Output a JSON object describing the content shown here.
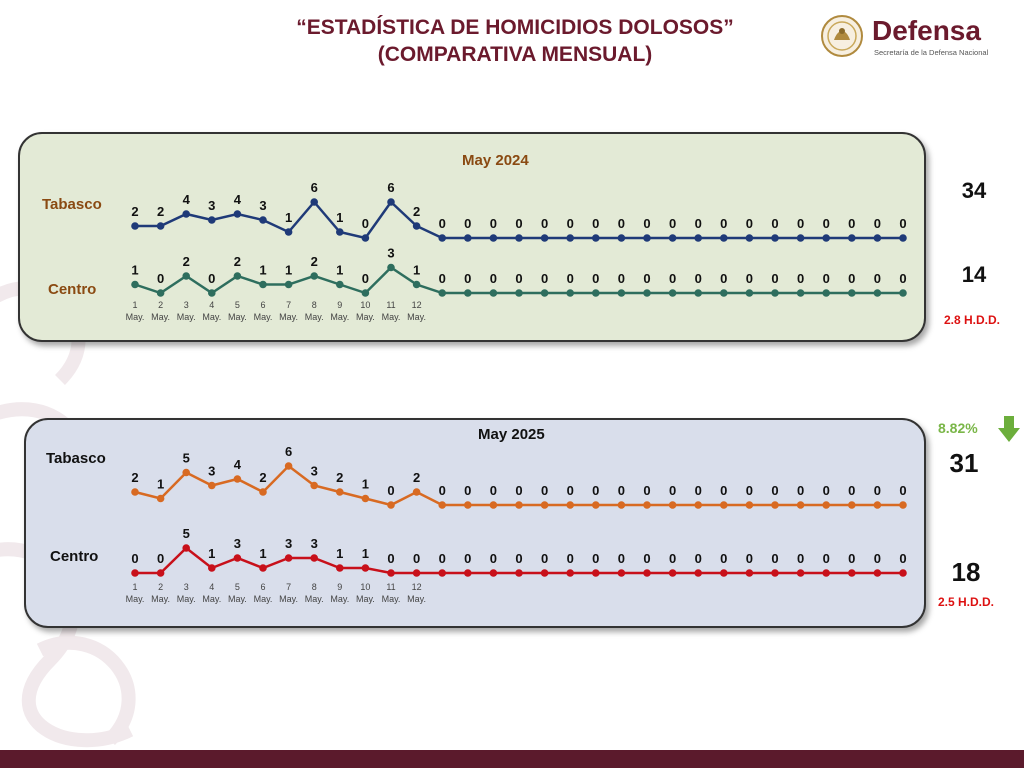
{
  "header": {
    "title_line1": "“ESTADÍSTICA DE HOMICIDIOS DOLOSOS”",
    "title_line2": "(COMPARATIVA MENSUAL)"
  },
  "brand": {
    "name": "Defensa",
    "subtitle": "Secretaría de la Defensa Nacional",
    "color": "#6b1a2d"
  },
  "colors": {
    "tabasco_2024": "#1f3a78",
    "centro_2024": "#2e6e5e",
    "tabasco_2025": "#d86a22",
    "centro_2025": "#c8101a",
    "label_2024": "#8a4a12",
    "label_2025": "#111111",
    "hdd": "#dd1111",
    "pct": "#7ab648"
  },
  "chart_data": [
    {
      "type": "line",
      "title": "May 2024",
      "x": [
        "1",
        "2",
        "3",
        "4",
        "5",
        "6",
        "7",
        "8",
        "9",
        "10",
        "11",
        "12",
        "",
        "",
        "",
        "",
        "",
        "",
        "",
        "",
        "",
        "",
        "",
        "",
        "",
        "",
        "",
        "",
        "",
        "",
        ""
      ],
      "x_sub": "May.",
      "series": [
        {
          "name": "Tabasco",
          "values": [
            2,
            2,
            4,
            3,
            4,
            3,
            1,
            6,
            1,
            0,
            6,
            2,
            0,
            0,
            0,
            0,
            0,
            0,
            0,
            0,
            0,
            0,
            0,
            0,
            0,
            0,
            0,
            0,
            0,
            0,
            0
          ],
          "total": "34"
        },
        {
          "name": "Centro",
          "values": [
            1,
            0,
            2,
            0,
            2,
            1,
            1,
            2,
            1,
            0,
            3,
            1,
            0,
            0,
            0,
            0,
            0,
            0,
            0,
            0,
            0,
            0,
            0,
            0,
            0,
            0,
            0,
            0,
            0,
            0,
            0
          ],
          "total": "14",
          "rate": "2.8 H.D.D."
        }
      ]
    },
    {
      "type": "line",
      "title": "May 2025",
      "x": [
        "1",
        "2",
        "3",
        "4",
        "5",
        "6",
        "7",
        "8",
        "9",
        "10",
        "11",
        "12",
        "",
        "",
        "",
        "",
        "",
        "",
        "",
        "",
        "",
        "",
        "",
        "",
        "",
        "",
        "",
        "",
        "",
        "",
        ""
      ],
      "x_sub": "May.",
      "series": [
        {
          "name": "Tabasco",
          "values": [
            2,
            1,
            5,
            3,
            4,
            2,
            6,
            3,
            2,
            1,
            0,
            2,
            0,
            0,
            0,
            0,
            0,
            0,
            0,
            0,
            0,
            0,
            0,
            0,
            0,
            0,
            0,
            0,
            0,
            0,
            0
          ],
          "total": "31",
          "change": "8.82%"
        },
        {
          "name": "Centro",
          "values": [
            0,
            0,
            5,
            1,
            3,
            1,
            3,
            3,
            1,
            1,
            0,
            0,
            0,
            0,
            0,
            0,
            0,
            0,
            0,
            0,
            0,
            0,
            0,
            0,
            0,
            0,
            0,
            0,
            0,
            0,
            0
          ],
          "total": "18",
          "rate": "2.5 H.D.D."
        }
      ]
    }
  ]
}
